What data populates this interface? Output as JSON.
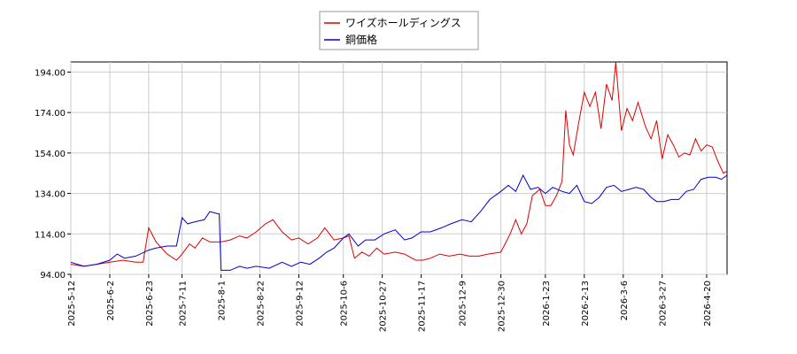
{
  "chart_data": {
    "type": "line",
    "title": "",
    "xlabel": "",
    "ylabel": "",
    "ylim": [
      94,
      199
    ],
    "xlim": [
      "2025-05-12",
      "2026-05-01"
    ],
    "grid": true,
    "legend_position": "top-center",
    "x_ticks": [
      "2025-5-12",
      "2025-6-2",
      "2025-6-23",
      "2025-7-11",
      "2025-8-1",
      "2025-8-22",
      "2025-9-12",
      "2025-10-6",
      "2025-10-27",
      "2025-11-17",
      "2025-12-9",
      "2025-12-30",
      "2026-1-23",
      "2026-2-13",
      "2026-3-6",
      "2026-3-27",
      "2026-4-20"
    ],
    "y_ticks": [
      "94.00",
      "114.00",
      "134.00",
      "154.00",
      "174.00",
      "194.00"
    ],
    "series": [
      {
        "name": "ワイズホールディングス",
        "color": "#dd0000",
        "points": [
          [
            "2025-05-12",
            99
          ],
          [
            "2025-05-19",
            98
          ],
          [
            "2025-05-26",
            99
          ],
          [
            "2025-06-02",
            100
          ],
          [
            "2025-06-09",
            101
          ],
          [
            "2025-06-16",
            100
          ],
          [
            "2025-06-20",
            100
          ],
          [
            "2025-06-23",
            117
          ],
          [
            "2025-06-27",
            110
          ],
          [
            "2025-07-03",
            104
          ],
          [
            "2025-07-08",
            101
          ],
          [
            "2025-07-11",
            104
          ],
          [
            "2025-07-15",
            109
          ],
          [
            "2025-07-18",
            107
          ],
          [
            "2025-07-22",
            112
          ],
          [
            "2025-07-26",
            110
          ],
          [
            "2025-08-01",
            110
          ],
          [
            "2025-08-06",
            111
          ],
          [
            "2025-08-11",
            113
          ],
          [
            "2025-08-15",
            112
          ],
          [
            "2025-08-20",
            115
          ],
          [
            "2025-08-25",
            119
          ],
          [
            "2025-08-29",
            121
          ],
          [
            "2025-09-03",
            115
          ],
          [
            "2025-09-08",
            111
          ],
          [
            "2025-09-12",
            112
          ],
          [
            "2025-09-17",
            109
          ],
          [
            "2025-09-22",
            112
          ],
          [
            "2025-09-26",
            117
          ],
          [
            "2025-10-01",
            111
          ],
          [
            "2025-10-06",
            112
          ],
          [
            "2025-10-09",
            113
          ],
          [
            "2025-10-12",
            102
          ],
          [
            "2025-10-16",
            105
          ],
          [
            "2025-10-20",
            103
          ],
          [
            "2025-10-24",
            107
          ],
          [
            "2025-10-28",
            104
          ],
          [
            "2025-11-03",
            105
          ],
          [
            "2025-11-08",
            104
          ],
          [
            "2025-11-14",
            101
          ],
          [
            "2025-11-18",
            101
          ],
          [
            "2025-11-22",
            102
          ],
          [
            "2025-11-27",
            104
          ],
          [
            "2025-12-02",
            103
          ],
          [
            "2025-12-08",
            104
          ],
          [
            "2025-12-13",
            103
          ],
          [
            "2025-12-18",
            103
          ],
          [
            "2025-12-23",
            104
          ],
          [
            "2025-12-30",
            105
          ],
          [
            "2026-01-04",
            114
          ],
          [
            "2026-01-07",
            121
          ],
          [
            "2026-01-10",
            114
          ],
          [
            "2026-01-13",
            119
          ],
          [
            "2026-01-16",
            133
          ],
          [
            "2026-01-20",
            136
          ],
          [
            "2026-01-23",
            128
          ],
          [
            "2026-01-26",
            128
          ],
          [
            "2026-01-29",
            133
          ],
          [
            "2026-02-01",
            140
          ],
          [
            "2026-02-03",
            175
          ],
          [
            "2026-02-05",
            158
          ],
          [
            "2026-02-07",
            153
          ],
          [
            "2026-02-10",
            169
          ],
          [
            "2026-02-13",
            184
          ],
          [
            "2026-02-16",
            177
          ],
          [
            "2026-02-19",
            184
          ],
          [
            "2026-02-22",
            166
          ],
          [
            "2026-02-25",
            188
          ],
          [
            "2026-02-28",
            180
          ],
          [
            "2026-03-02",
            199
          ],
          [
            "2026-03-05",
            165
          ],
          [
            "2026-03-08",
            176
          ],
          [
            "2026-03-11",
            170
          ],
          [
            "2026-03-14",
            179
          ],
          [
            "2026-03-18",
            167
          ],
          [
            "2026-03-21",
            161
          ],
          [
            "2026-03-24",
            170
          ],
          [
            "2026-03-27",
            151
          ],
          [
            "2026-03-30",
            163
          ],
          [
            "2026-04-02",
            158
          ],
          [
            "2026-04-05",
            152
          ],
          [
            "2026-04-08",
            154
          ],
          [
            "2026-04-11",
            153
          ],
          [
            "2026-04-14",
            161
          ],
          [
            "2026-04-17",
            155
          ],
          [
            "2026-04-20",
            158
          ],
          [
            "2026-04-23",
            157
          ],
          [
            "2026-04-26",
            150
          ],
          [
            "2026-04-29",
            144
          ],
          [
            "2026-05-01",
            145
          ]
        ]
      },
      {
        "name": "銅価格",
        "color": "#0000cc",
        "points": [
          [
            "2025-05-12",
            100
          ],
          [
            "2025-05-19",
            98
          ],
          [
            "2025-05-26",
            99
          ],
          [
            "2025-06-02",
            101
          ],
          [
            "2025-06-06",
            104
          ],
          [
            "2025-06-10",
            102
          ],
          [
            "2025-06-16",
            103
          ],
          [
            "2025-06-23",
            106
          ],
          [
            "2025-06-27",
            107
          ],
          [
            "2025-07-03",
            108
          ],
          [
            "2025-07-08",
            108
          ],
          [
            "2025-07-11",
            122
          ],
          [
            "2025-07-14",
            119
          ],
          [
            "2025-07-18",
            120
          ],
          [
            "2025-07-23",
            121
          ],
          [
            "2025-07-26",
            125
          ],
          [
            "2025-07-30",
            124
          ],
          [
            "2025-07-31",
            124
          ],
          [
            "2025-08-01",
            96
          ],
          [
            "2025-08-06",
            96
          ],
          [
            "2025-08-11",
            98
          ],
          [
            "2025-08-15",
            97
          ],
          [
            "2025-08-20",
            98
          ],
          [
            "2025-08-27",
            97
          ],
          [
            "2025-09-03",
            100
          ],
          [
            "2025-09-08",
            98
          ],
          [
            "2025-09-13",
            100
          ],
          [
            "2025-09-18",
            99
          ],
          [
            "2025-09-23",
            102
          ],
          [
            "2025-09-27",
            105
          ],
          [
            "2025-10-01",
            107
          ],
          [
            "2025-10-06",
            112
          ],
          [
            "2025-10-09",
            114
          ],
          [
            "2025-10-14",
            108
          ],
          [
            "2025-10-18",
            111
          ],
          [
            "2025-10-23",
            111
          ],
          [
            "2025-10-28",
            114
          ],
          [
            "2025-11-03",
            116
          ],
          [
            "2025-11-08",
            111
          ],
          [
            "2025-11-12",
            112
          ],
          [
            "2025-11-17",
            115
          ],
          [
            "2025-11-22",
            115
          ],
          [
            "2025-11-28",
            117
          ],
          [
            "2025-12-03",
            119
          ],
          [
            "2025-12-09",
            121
          ],
          [
            "2025-12-14",
            120
          ],
          [
            "2025-12-19",
            125
          ],
          [
            "2025-12-24",
            131
          ],
          [
            "2025-12-30",
            135
          ],
          [
            "2026-01-03",
            138
          ],
          [
            "2026-01-07",
            135
          ],
          [
            "2026-01-11",
            143
          ],
          [
            "2026-01-15",
            136
          ],
          [
            "2026-01-19",
            137
          ],
          [
            "2026-01-23",
            134
          ],
          [
            "2026-01-27",
            137
          ],
          [
            "2026-02-01",
            135
          ],
          [
            "2026-02-05",
            134
          ],
          [
            "2026-02-09",
            138
          ],
          [
            "2026-02-13",
            130
          ],
          [
            "2026-02-17",
            129
          ],
          [
            "2026-02-21",
            132
          ],
          [
            "2026-02-25",
            137
          ],
          [
            "2026-03-01",
            138
          ],
          [
            "2026-03-05",
            135
          ],
          [
            "2026-03-09",
            136
          ],
          [
            "2026-03-13",
            137
          ],
          [
            "2026-03-17",
            136
          ],
          [
            "2026-03-21",
            132
          ],
          [
            "2026-03-24",
            130
          ],
          [
            "2026-03-28",
            130
          ],
          [
            "2026-04-01",
            131
          ],
          [
            "2026-04-05",
            131
          ],
          [
            "2026-04-09",
            135
          ],
          [
            "2026-04-13",
            136
          ],
          [
            "2026-04-17",
            141
          ],
          [
            "2026-04-21",
            142
          ],
          [
            "2026-04-25",
            142
          ],
          [
            "2026-04-28",
            141
          ],
          [
            "2026-05-01",
            143
          ]
        ]
      }
    ]
  }
}
